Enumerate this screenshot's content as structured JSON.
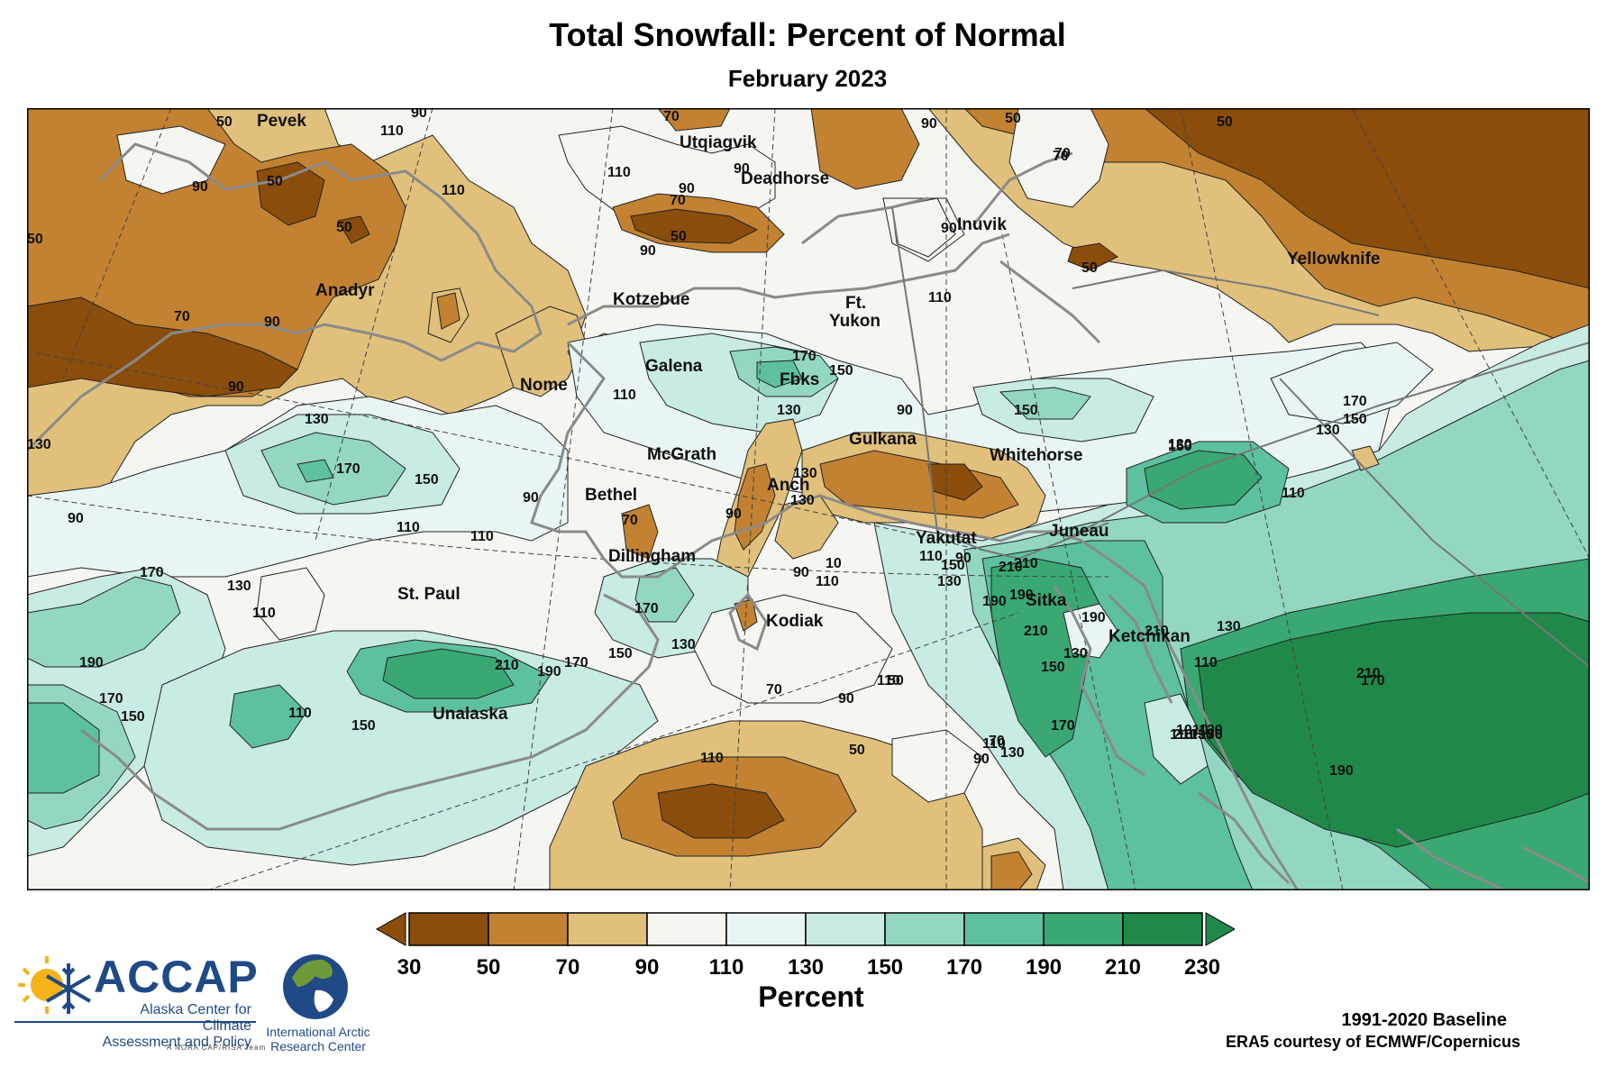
{
  "title": "Total Snowfall: Percent of Normal",
  "subtitle": "February 2023",
  "colors": {
    "c30_50": "#8b4d0b",
    "c50_70": "#c28232",
    "c70_90": "#e1c07c",
    "c90_110": "#f5f5f2",
    "c110_130": "#e8f5f4",
    "c130_150": "#c8ebe3",
    "c150_170": "#93d7c3",
    "c170_190": "#5dc19f",
    "c190_210": "#3aa873",
    "c210_230": "#20894a",
    "coast": "#888888",
    "contour": "#222222"
  },
  "cities": [
    {
      "id": "pevek",
      "name": "Pevek"
    },
    {
      "id": "utqiagvik",
      "name": "Utqiagvik"
    },
    {
      "id": "deadhorse",
      "name": "Deadhorse"
    },
    {
      "id": "inuvik",
      "name": "Inuvik"
    },
    {
      "id": "yellowknife",
      "name": "Yellowknife"
    },
    {
      "id": "anadyr",
      "name": "Anadyr"
    },
    {
      "id": "kotzebue",
      "name": "Kotzebue"
    },
    {
      "id": "ft_yukon_1",
      "name": "Ft."
    },
    {
      "id": "ft_yukon_2",
      "name": "Yukon"
    },
    {
      "id": "nome",
      "name": "Nome"
    },
    {
      "id": "galena",
      "name": "Galena"
    },
    {
      "id": "fbks",
      "name": "Fbks"
    },
    {
      "id": "gulkana",
      "name": "Gulkana"
    },
    {
      "id": "whitehorse",
      "name": "Whitehorse"
    },
    {
      "id": "mcgrath",
      "name": "McGrath"
    },
    {
      "id": "bethel",
      "name": "Bethel"
    },
    {
      "id": "anch",
      "name": "Anch"
    },
    {
      "id": "yakutat",
      "name": "Yakutat"
    },
    {
      "id": "juneau",
      "name": "Juneau"
    },
    {
      "id": "dillingham",
      "name": "Dillingham"
    },
    {
      "id": "st_paul",
      "name": "St. Paul"
    },
    {
      "id": "sitka",
      "name": "Sitka"
    },
    {
      "id": "kodiak",
      "name": "Kodiak"
    },
    {
      "id": "ketchikan",
      "name": "Ketchikan"
    },
    {
      "id": "unalaska",
      "name": "Unalaska"
    }
  ],
  "contour_labels": [
    {
      "id": "l1",
      "text": "50"
    },
    {
      "id": "l2",
      "text": "110"
    },
    {
      "id": "l3",
      "text": "90"
    },
    {
      "id": "l4",
      "text": "70"
    },
    {
      "id": "l5",
      "text": "90"
    },
    {
      "id": "l6",
      "text": "50"
    },
    {
      "id": "l7",
      "text": "70"
    },
    {
      "id": "l8",
      "text": "50"
    },
    {
      "id": "l9",
      "text": "90"
    },
    {
      "id": "l10",
      "text": "50"
    },
    {
      "id": "l11",
      "text": "110"
    },
    {
      "id": "l12",
      "text": "50"
    },
    {
      "id": "l13",
      "text": "90"
    },
    {
      "id": "l14",
      "text": "110"
    },
    {
      "id": "l15",
      "text": "90"
    },
    {
      "id": "l16",
      "text": "70"
    },
    {
      "id": "l17",
      "text": "50"
    },
    {
      "id": "l18",
      "text": "90"
    },
    {
      "id": "l19",
      "text": "90"
    },
    {
      "id": "l20",
      "text": "50"
    },
    {
      "id": "l21",
      "text": "50"
    },
    {
      "id": "l22",
      "text": "70"
    },
    {
      "id": "l23",
      "text": "90"
    },
    {
      "id": "l24",
      "text": "70"
    },
    {
      "id": "l25",
      "text": "110"
    },
    {
      "id": "l26",
      "text": "110"
    },
    {
      "id": "l27",
      "text": "90"
    },
    {
      "id": "l28",
      "text": "130"
    },
    {
      "id": "l29",
      "text": "110"
    },
    {
      "id": "l30",
      "text": "170"
    },
    {
      "id": "l31",
      "text": "150"
    },
    {
      "id": "l32",
      "text": "130"
    },
    {
      "id": "l33",
      "text": "130"
    },
    {
      "id": "l34",
      "text": "170"
    },
    {
      "id": "l35",
      "text": "150"
    },
    {
      "id": "l36",
      "text": "130"
    },
    {
      "id": "l37",
      "text": "90"
    },
    {
      "id": "l38",
      "text": "150"
    },
    {
      "id": "l39",
      "text": "170"
    },
    {
      "id": "l40",
      "text": "150"
    },
    {
      "id": "l41",
      "text": "130"
    },
    {
      "id": "l42",
      "text": "110"
    },
    {
      "id": "l43",
      "text": "90"
    },
    {
      "id": "l44",
      "text": "110"
    },
    {
      "id": "l45",
      "text": "70"
    },
    {
      "id": "l46",
      "text": "90"
    },
    {
      "id": "l47",
      "text": "130"
    },
    {
      "id": "l48",
      "text": "90"
    },
    {
      "id": "l49",
      "text": "90"
    },
    {
      "id": "l50",
      "text": "110"
    },
    {
      "id": "l51",
      "text": "210"
    },
    {
      "id": "l52",
      "text": "170"
    },
    {
      "id": "l53",
      "text": "130"
    },
    {
      "id": "l54",
      "text": "110"
    },
    {
      "id": "l55",
      "text": "170"
    },
    {
      "id": "l56",
      "text": "190"
    },
    {
      "id": "l57",
      "text": "210"
    },
    {
      "id": "l58",
      "text": "190"
    },
    {
      "id": "l59",
      "text": "170"
    },
    {
      "id": "l60",
      "text": "190"
    },
    {
      "id": "l61",
      "text": "170"
    },
    {
      "id": "l62",
      "text": "150"
    },
    {
      "id": "l63",
      "text": "150"
    },
    {
      "id": "l64",
      "text": "110"
    },
    {
      "id": "l65",
      "text": "150"
    },
    {
      "id": "l66",
      "text": "130"
    },
    {
      "id": "l67",
      "text": "90"
    },
    {
      "id": "l68",
      "text": "110"
    },
    {
      "id": "l69",
      "text": "50"
    },
    {
      "id": "l70",
      "text": "70"
    },
    {
      "id": "l71",
      "text": "90"
    },
    {
      "id": "l72",
      "text": "110"
    },
    {
      "id": "l73",
      "text": "50"
    },
    {
      "id": "l74",
      "text": "110"
    },
    {
      "id": "l75",
      "text": "90"
    },
    {
      "id": "l76",
      "text": "70"
    },
    {
      "id": "l77",
      "text": "130"
    },
    {
      "id": "l78",
      "text": "110"
    },
    {
      "id": "l79",
      "text": "150"
    },
    {
      "id": "l80",
      "text": "130"
    },
    {
      "id": "l81",
      "text": "210"
    },
    {
      "id": "l82",
      "text": "190"
    },
    {
      "id": "l83",
      "text": "210"
    },
    {
      "id": "l84",
      "text": "190"
    },
    {
      "id": "l85",
      "text": "130"
    },
    {
      "id": "l86",
      "text": "150"
    },
    {
      "id": "l87",
      "text": "170"
    },
    {
      "id": "l88",
      "text": "210"
    },
    {
      "id": "l89",
      "text": "210"
    },
    {
      "id": "l90",
      "text": "130"
    },
    {
      "id": "l91",
      "text": "150"
    },
    {
      "id": "l92",
      "text": "170"
    },
    {
      "id": "l93",
      "text": "110"
    },
    {
      "id": "l94",
      "text": "130"
    },
    {
      "id": "l95",
      "text": "190"
    },
    {
      "id": "l96",
      "text": "210"
    },
    {
      "id": "l97",
      "text": "130"
    },
    {
      "id": "l98",
      "text": "150"
    },
    {
      "id": "l99",
      "text": "130"
    },
    {
      "id": "l100",
      "text": "170"
    },
    {
      "id": "l101",
      "text": "1010"
    },
    {
      "id": "l102",
      "text": "110"
    },
    {
      "id": "l103",
      "text": "10"
    }
  ],
  "legend": {
    "title": "Percent",
    "ticks": [
      "30",
      "50",
      "70",
      "90",
      "110",
      "130",
      "150",
      "170",
      "190",
      "210",
      "230"
    ]
  },
  "footer": {
    "baseline": "1991-2020 Baseline",
    "credit": "ERA5 courtesy of ECMWF/Copernicus"
  },
  "logos": {
    "accap_name": "ACCAP",
    "accap_line1": "Alaska Center for Climate",
    "accap_line2": "Assessment and Policy",
    "accap_tag": "A NOAA CAP/RISA Team",
    "iarc_line1": "International Arctic",
    "iarc_line2": "Research Center"
  }
}
